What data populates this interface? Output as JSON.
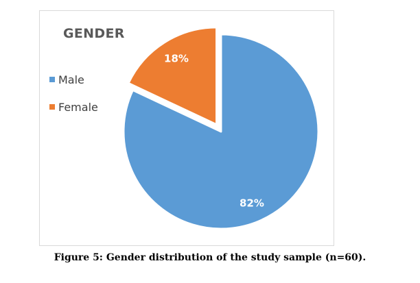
{
  "chart_data": {
    "type": "pie",
    "title": "GENDER",
    "categories": [
      "Male",
      "Female"
    ],
    "values": [
      82,
      18
    ],
    "value_labels": [
      "82%",
      "18%"
    ],
    "colors": [
      "#5b9bd5",
      "#ed7d31"
    ],
    "exploded": [
      "Female"
    ],
    "legend_position": "top-left"
  },
  "caption": "Figure 5: Gender distribution of the study sample (n=60)."
}
